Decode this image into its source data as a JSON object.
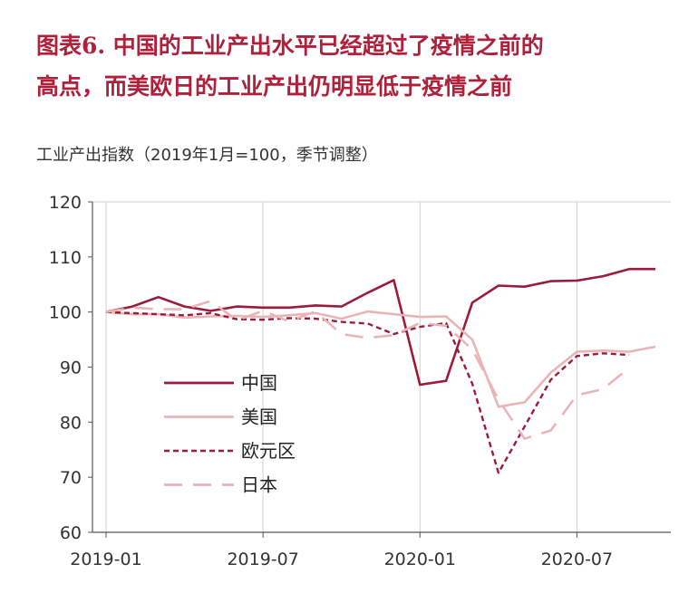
{
  "title_lines": [
    "图表6. 中国的工业产出水平已经超过了疫情之前的",
    "高点，而美欧日的工业产出仍明显低于疫情之前"
  ],
  "chart_data": {
    "type": "line",
    "ylabel": "工业产出指数（2019年1月=100，季节调整）",
    "ylim": [
      60,
      120
    ],
    "yticks": [
      60,
      70,
      80,
      90,
      100,
      110,
      120
    ],
    "xlim": [
      "2019-01",
      "2020-10"
    ],
    "xticks": [
      "2019-01",
      "2019-07",
      "2020-01",
      "2020-07"
    ],
    "x": [
      "2019-01",
      "2019-02",
      "2019-03",
      "2019-04",
      "2019-05",
      "2019-06",
      "2019-07",
      "2019-08",
      "2019-09",
      "2019-10",
      "2019-11",
      "2019-12",
      "2020-01",
      "2020-02",
      "2020-03",
      "2020-04",
      "2020-05",
      "2020-06",
      "2020-07",
      "2020-08",
      "2020-09",
      "2020-10"
    ],
    "grid": "vertical",
    "legend_position": "left-center",
    "series": [
      {
        "name": "中国",
        "color": "#9b1b3a",
        "dash": "solid",
        "width": 2.6,
        "values": [
          100.0,
          101.0,
          102.7,
          101.0,
          100.2,
          101.0,
          100.8,
          100.8,
          101.2,
          101.0,
          103.5,
          105.8,
          86.8,
          87.5,
          101.7,
          104.8,
          104.6,
          105.6,
          105.7,
          106.5,
          107.8,
          107.8
        ]
      },
      {
        "name": "美国",
        "color": "#eab4b6",
        "dash": "solid",
        "width": 2.6,
        "values": [
          100.0,
          99.6,
          99.6,
          99.0,
          99.2,
          99.3,
          99.1,
          99.4,
          99.8,
          98.8,
          100.1,
          99.6,
          99.1,
          99.2,
          95.0,
          82.8,
          83.6,
          89.0,
          92.8,
          93.0,
          92.8,
          93.7
        ]
      },
      {
        "name": "欧元区",
        "color": "#9b1b3a",
        "dash": "dashed",
        "width": 2.4,
        "values": [
          100.0,
          99.8,
          99.6,
          99.4,
          99.8,
          98.7,
          98.6,
          98.9,
          98.8,
          98.2,
          97.9,
          96.0,
          97.3,
          98.0,
          87.0,
          70.8,
          79.2,
          87.7,
          92.0,
          92.5,
          92.2,
          null
        ]
      },
      {
        "name": "日本",
        "color": "#eab4b6",
        "dash": "longdash",
        "width": 2.6,
        "values": [
          100.0,
          100.8,
          100.5,
          100.5,
          102.0,
          98.5,
          100.2,
          98.3,
          100.1,
          96.0,
          95.3,
          95.8,
          98.0,
          97.5,
          93.2,
          84.1,
          77.0,
          78.5,
          84.9,
          86.0,
          89.9,
          null
        ]
      }
    ]
  }
}
